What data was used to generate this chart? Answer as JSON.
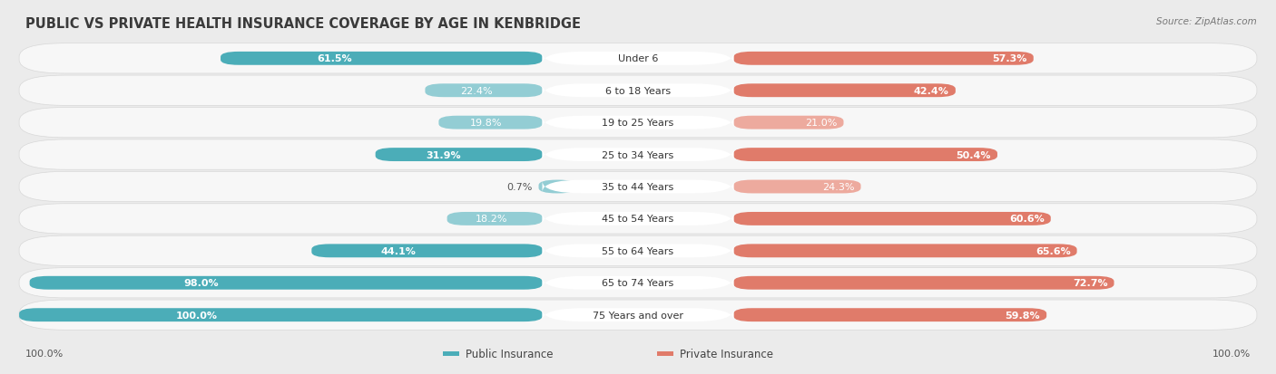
{
  "title": "PUBLIC VS PRIVATE HEALTH INSURANCE COVERAGE BY AGE IN KENBRIDGE",
  "source": "Source: ZipAtlas.com",
  "categories": [
    "Under 6",
    "6 to 18 Years",
    "19 to 25 Years",
    "25 to 34 Years",
    "35 to 44 Years",
    "45 to 54 Years",
    "55 to 64 Years",
    "65 to 74 Years",
    "75 Years and over"
  ],
  "public_values": [
    61.5,
    22.4,
    19.8,
    31.9,
    0.7,
    18.2,
    44.1,
    98.0,
    100.0
  ],
  "private_values": [
    57.3,
    42.4,
    21.0,
    50.4,
    24.3,
    60.6,
    65.6,
    72.7,
    59.8
  ],
  "public_color": "#4BADB8",
  "private_color": "#E07B6A",
  "public_color_light": "#93CDD4",
  "private_color_light": "#EDAA9E",
  "background_color": "#ebebeb",
  "row_bg_color": "#f7f7f7",
  "max_value": 100.0,
  "title_fontsize": 10.5,
  "label_fontsize": 8,
  "value_fontsize": 8,
  "legend_fontsize": 8.5,
  "source_fontsize": 7.5,
  "axis_label_fontsize": 8
}
